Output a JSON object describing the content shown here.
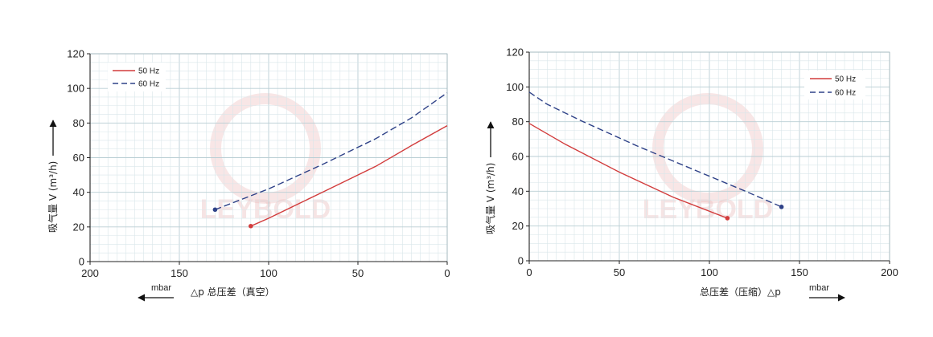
{
  "chart_data": [
    {
      "type": "line",
      "title": "",
      "ylabel": "吸气量 V (m³/h)",
      "xlabel": "△p 总压差（真空）",
      "x_unit": "mbar",
      "xlim": [
        200,
        0
      ],
      "ylim": [
        0,
        120
      ],
      "x_reversed": true,
      "xticks": [
        200,
        150,
        100,
        50,
        0
      ],
      "yticks": [
        0,
        20,
        40,
        60,
        80,
        100,
        120
      ],
      "grid": true,
      "legend_position": "top-left",
      "series": [
        {
          "name": "50 Hz",
          "color": "#d23c3c",
          "dash": "solid",
          "x": [
            110,
            100,
            70,
            40,
            20,
            0
          ],
          "y": [
            20.5,
            25,
            40,
            55,
            67,
            78.5
          ]
        },
        {
          "name": "60 Hz",
          "color": "#2f4288",
          "dash": "dashed",
          "x": [
            130,
            100,
            70,
            40,
            20,
            0
          ],
          "y": [
            30,
            42,
            56,
            71,
            83,
            97.5
          ]
        }
      ]
    },
    {
      "type": "line",
      "title": "",
      "ylabel": "吸气量 V (m³/h)",
      "xlabel": "总压差（压缩）△p",
      "x_unit": "mbar",
      "xlim": [
        0,
        200
      ],
      "ylim": [
        0,
        120
      ],
      "x_reversed": false,
      "xticks": [
        0,
        50,
        100,
        150,
        200
      ],
      "yticks": [
        0,
        20,
        40,
        60,
        80,
        100,
        120
      ],
      "grid": true,
      "legend_position": "top-right",
      "series": [
        {
          "name": "50 Hz",
          "color": "#d23c3c",
          "dash": "solid",
          "x": [
            0,
            20,
            50,
            80,
            110
          ],
          "y": [
            79,
            67,
            51,
            36.5,
            24.5
          ]
        },
        {
          "name": "60 Hz",
          "color": "#2f4288",
          "dash": "dashed",
          "x": [
            0,
            10,
            30,
            60,
            90,
            120,
            140
          ],
          "y": [
            97,
            90,
            80,
            66,
            53,
            40,
            31
          ]
        }
      ]
    }
  ],
  "watermark": "LEYBOLD"
}
